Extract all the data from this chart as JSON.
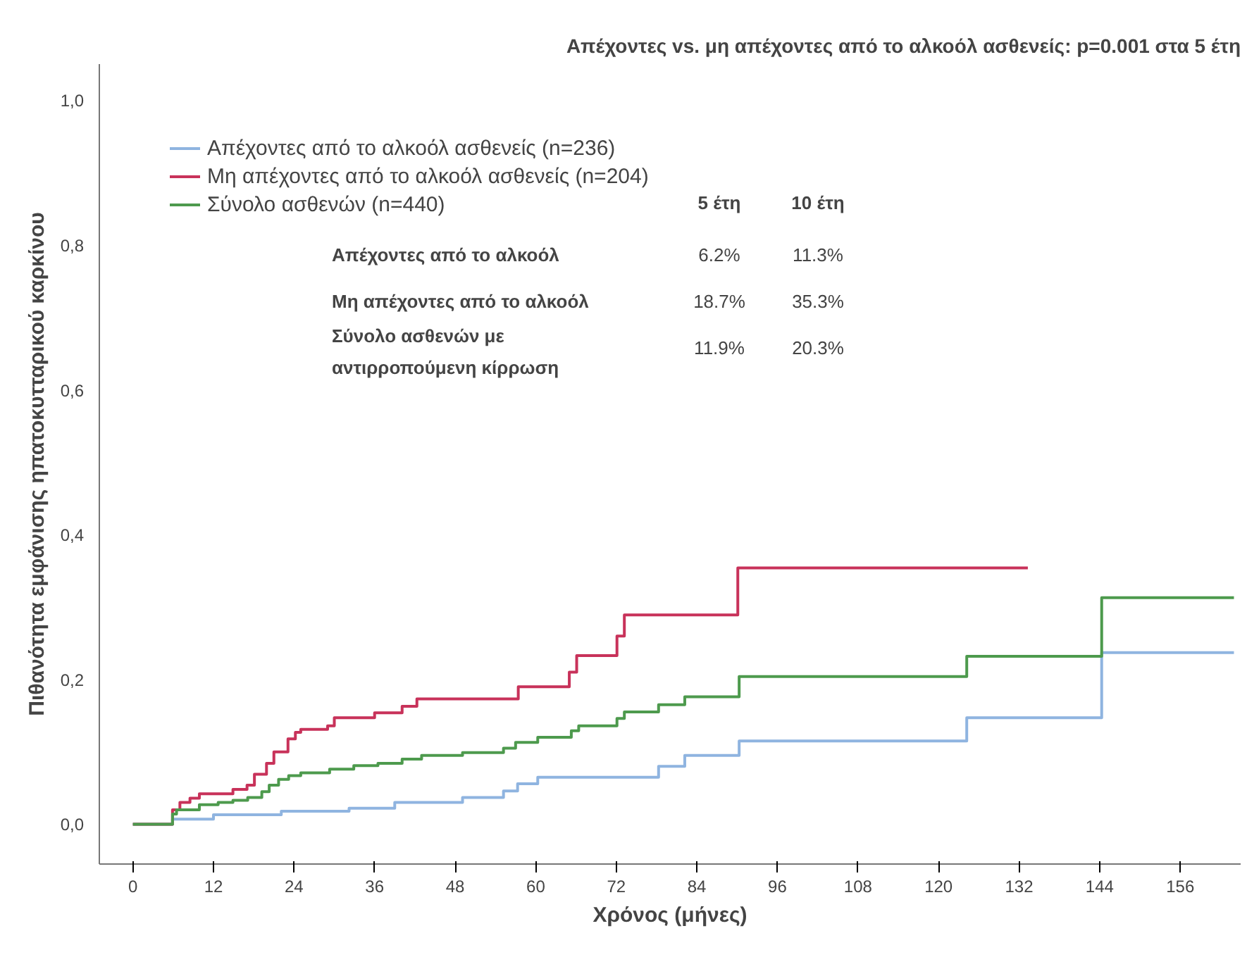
{
  "chart_data": {
    "type": "step",
    "title": "Απέχοντες vs. μη απέχοντες από το αλκοόλ ασθενείς: p=0.001 στα 5 έτη",
    "xlabel": "Χρόνος (μήνες)",
    "ylabel": "Πιθανότητα εμφάνισης ηπατοκυτταρικού καρκίνου",
    "series": [
      {
        "name": "Απέχοντες από το αλκοόλ ασθενείς (n=236)",
        "color": "#8fb4e0",
        "x": [
          0,
          5.9,
          12,
          22.1,
          32.2,
          39,
          49.1,
          55.2,
          57.3,
          60.3,
          78.3,
          82.2,
          90.3,
          124.2,
          144.3,
          164
        ],
        "values": [
          0,
          0.007,
          0.013,
          0.018,
          0.022,
          0.03,
          0.037,
          0.046,
          0.056,
          0.065,
          0.08,
          0.095,
          0.115,
          0.147,
          0.237,
          0.237
        ]
      },
      {
        "name": "Μη απέχοντες από το αλκοόλ ασθενείς (n=204)",
        "color": "#c8325a",
        "x": [
          0,
          5.9,
          7,
          8.5,
          9.9,
          14.9,
          17,
          18.1,
          19.9,
          21,
          23.1,
          24.2,
          25,
          29,
          30,
          36,
          40.1,
          42.3,
          57.4,
          65,
          66.1,
          72.1,
          73.2,
          90.1,
          133.3
        ],
        "values": [
          0,
          0.02,
          0.03,
          0.036,
          0.042,
          0.048,
          0.054,
          0.069,
          0.084,
          0.1,
          0.118,
          0.127,
          0.131,
          0.136,
          0.147,
          0.154,
          0.163,
          0.173,
          0.19,
          0.21,
          0.233,
          0.26,
          0.289,
          0.354,
          0.354
        ]
      },
      {
        "name": "Σύνολο ασθενών (n=440)",
        "color": "#4d9a4d",
        "x": [
          0,
          5.9,
          6.5,
          9.9,
          12.7,
          14.9,
          17.1,
          19.2,
          20.3,
          21.7,
          23.2,
          25,
          29.3,
          32.9,
          36.5,
          40.1,
          43,
          49.1,
          55.2,
          57,
          60.3,
          65.3,
          66.4,
          72.1,
          73.2,
          78.3,
          82.2,
          90.3,
          124.2,
          144.3,
          164
        ],
        "values": [
          0,
          0.014,
          0.02,
          0.027,
          0.03,
          0.033,
          0.037,
          0.045,
          0.054,
          0.062,
          0.067,
          0.071,
          0.076,
          0.081,
          0.084,
          0.09,
          0.095,
          0.099,
          0.105,
          0.113,
          0.12,
          0.129,
          0.136,
          0.146,
          0.155,
          0.165,
          0.176,
          0.204,
          0.232,
          0.313,
          0.313
        ]
      }
    ],
    "xlim": [
      -5,
      165
    ],
    "ylim": [
      -0.055,
      1.05
    ],
    "xticks": [
      0,
      12,
      24,
      36,
      48,
      60,
      72,
      84,
      96,
      108,
      120,
      132,
      144,
      156
    ],
    "yticks": [
      {
        "value": 0,
        "label": "0,0"
      },
      {
        "value": 0.2,
        "label": "0,2"
      },
      {
        "value": 0.4,
        "label": "0,4"
      },
      {
        "value": 0.6,
        "label": "0,6"
      },
      {
        "value": 0.8,
        "label": "0,8"
      },
      {
        "value": 1,
        "label": "1,0"
      }
    ],
    "grid": false,
    "legend": "top left",
    "marker": "none",
    "line_style": "solid",
    "annotations": [
      "5 έτη",
      "10 έτη",
      "Απέχοντες από το αλκοόλ",
      "6.2%",
      "11.3%",
      "Μη απέχοντες από το αλκοόλ",
      "18.7%",
      "35.3%",
      "Σύνολο ασθενών με\nαντιρροπούμενη κίρρωση",
      "11.9%",
      "20.3%"
    ]
  }
}
